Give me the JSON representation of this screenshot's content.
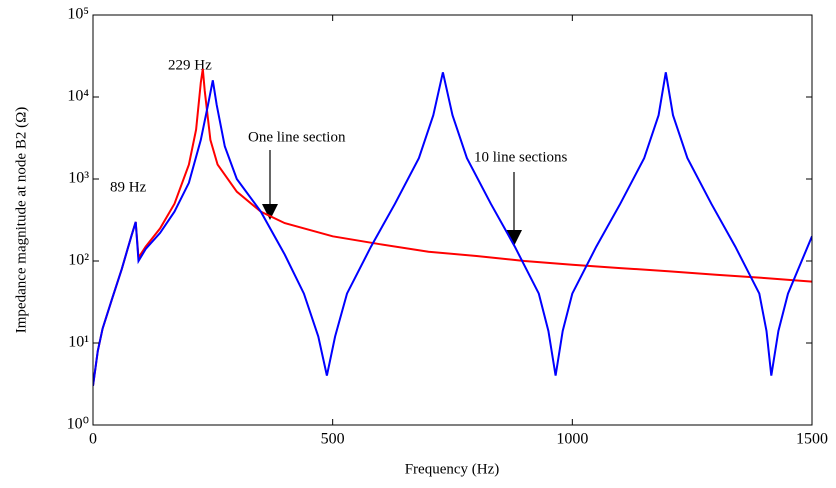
{
  "chart_data": {
    "type": "line",
    "xlabel": "Frequency (Hz)",
    "ylabel": "Impedance magnitude at node B2 (Ω)",
    "log_y": true,
    "xlim": [
      0,
      1500
    ],
    "xticks": [
      0,
      500,
      1000,
      1500
    ],
    "ylim": [
      1,
      100000
    ],
    "yticks": [
      {
        "value": 1,
        "label": "10⁰"
      },
      {
        "value": 10,
        "label": "10¹"
      },
      {
        "value": 100,
        "label": "10²"
      },
      {
        "value": 1000,
        "label": "10³"
      },
      {
        "value": 10000,
        "label": "10⁴"
      },
      {
        "value": 100000,
        "label": "10⁵"
      }
    ],
    "annotations": [
      "229 Hz",
      "89 Hz",
      "One line section",
      "10 line sections"
    ],
    "series": [
      {
        "color": "#ff0000",
        "x": [
          0,
          10,
          20,
          40,
          60,
          80,
          89,
          95,
          110,
          140,
          170,
          200,
          215,
          225,
          229,
          233,
          245,
          260,
          300,
          350,
          400,
          500,
          600,
          700,
          800,
          900,
          1000,
          1100,
          1200,
          1300,
          1400,
          1500
        ],
        "values": [
          3,
          8,
          15,
          35,
          80,
          200,
          300,
          110,
          150,
          250,
          500,
          1500,
          4000,
          15000,
          22000,
          12000,
          3000,
          1500,
          700,
          400,
          290,
          200,
          160,
          130,
          115,
          100,
          90,
          82,
          75,
          68,
          62,
          56
        ]
      },
      {
        "color": "#0000ff",
        "x": [
          0,
          10,
          20,
          40,
          60,
          80,
          89,
          95,
          110,
          140,
          170,
          200,
          225,
          240,
          250,
          258,
          275,
          300,
          350,
          400,
          440,
          470,
          488,
          505,
          530,
          580,
          630,
          680,
          710,
          730,
          750,
          780,
          830,
          880,
          930,
          950,
          965,
          980,
          1000,
          1050,
          1100,
          1150,
          1180,
          1195,
          1210,
          1240,
          1290,
          1340,
          1390,
          1405,
          1415,
          1430,
          1450,
          1500
        ],
        "values": [
          3,
          8,
          15,
          35,
          80,
          200,
          300,
          100,
          140,
          220,
          400,
          900,
          3000,
          8000,
          16000,
          8000,
          2500,
          1000,
          400,
          120,
          40,
          12,
          4,
          12,
          40,
          150,
          500,
          1800,
          6000,
          20000,
          6000,
          1800,
          500,
          150,
          40,
          14,
          4,
          14,
          40,
          150,
          500,
          1800,
          6000,
          20000,
          6000,
          1800,
          500,
          150,
          40,
          14,
          4,
          14,
          40,
          200
        ]
      }
    ]
  }
}
